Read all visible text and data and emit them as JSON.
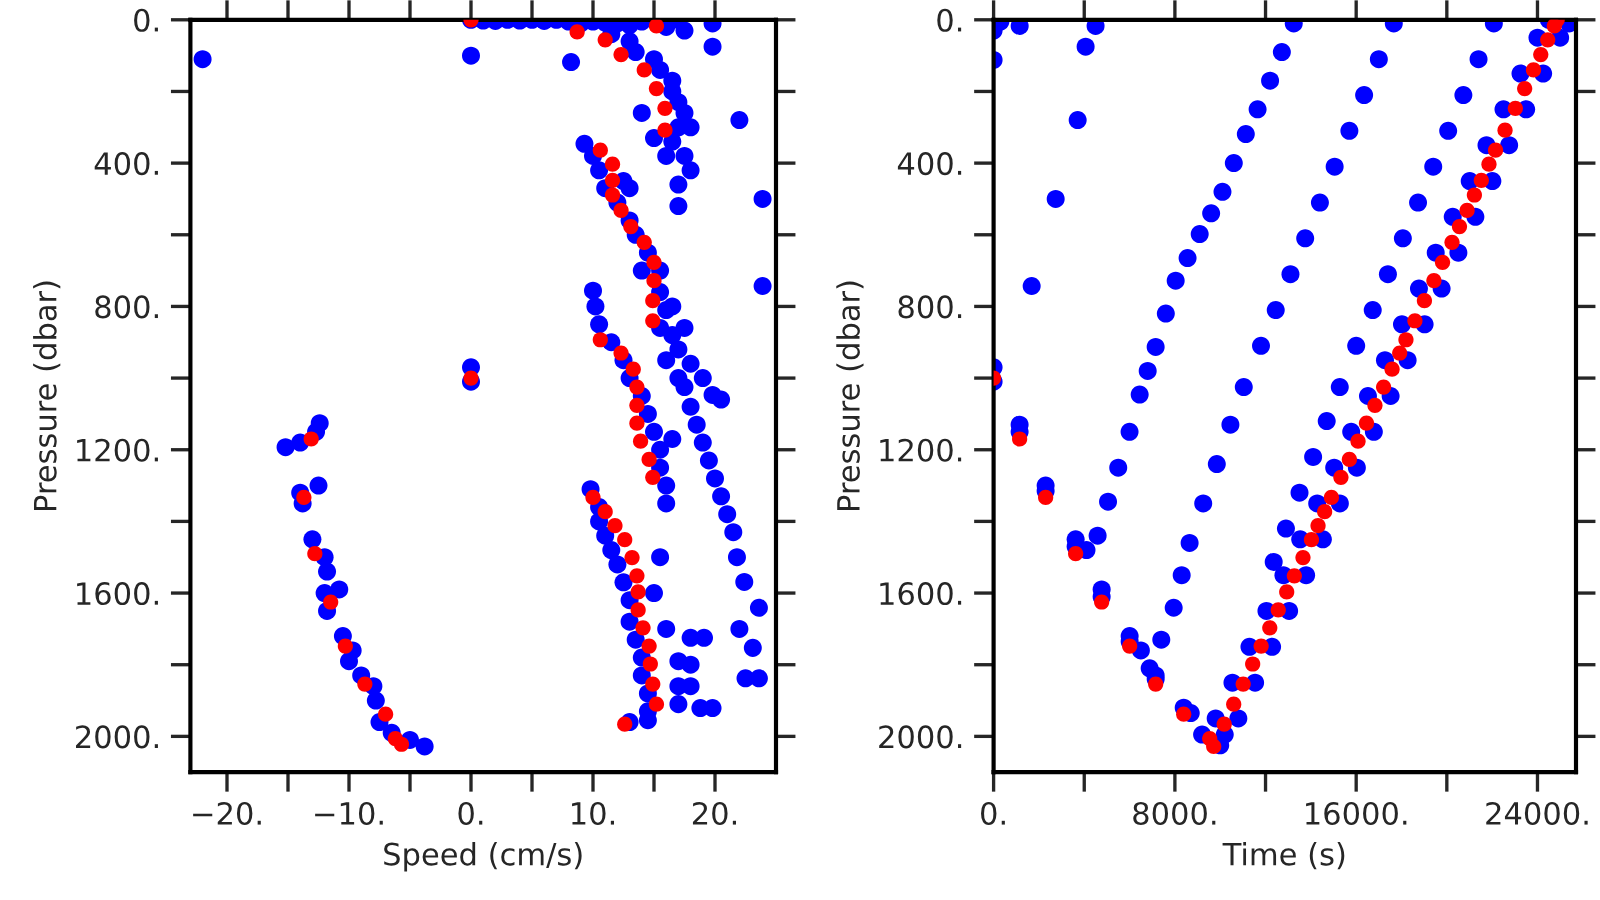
{
  "chart_data": [
    {
      "type": "scatter",
      "xlabel": "Speed (cm/s)",
      "ylabel": "Pressure (dbar)",
      "marker": "circle",
      "grid": false,
      "xlim": [
        -23,
        25
      ],
      "ylim": [
        2100,
        0
      ],
      "xticks": [
        {
          "value": -20,
          "label": "−20."
        },
        {
          "value": -15,
          "label": null
        },
        {
          "value": -10,
          "label": "−10."
        },
        {
          "value": -5,
          "label": null
        },
        {
          "value": 0,
          "label": "0."
        },
        {
          "value": 5,
          "label": null
        },
        {
          "value": 10,
          "label": "10."
        },
        {
          "value": 15,
          "label": null
        },
        {
          "value": 20,
          "label": "20."
        }
      ],
      "yticks": [
        {
          "value": 0,
          "label": "0."
        },
        {
          "value": 200,
          "label": null
        },
        {
          "value": 400,
          "label": "400."
        },
        {
          "value": 600,
          "label": null
        },
        {
          "value": 800,
          "label": "800."
        },
        {
          "value": 1000,
          "label": null
        },
        {
          "value": 1200,
          "label": "1200."
        },
        {
          "value": 1400,
          "label": null
        },
        {
          "value": 1600,
          "label": "1600."
        },
        {
          "value": 1800,
          "label": null
        },
        {
          "value": 2000,
          "label": "2000."
        }
      ],
      "series": [
        {
          "color": "#0000ff",
          "x": [
            0,
            1,
            2,
            3,
            4,
            5,
            6,
            7,
            8,
            9,
            10,
            11,
            12,
            13,
            14,
            16,
            17,
            17.5,
            0,
            -22,
            8.2,
            19.8,
            19.8,
            22,
            23.9,
            23.9,
            11.5,
            13,
            13.5,
            15,
            15.5,
            16.5,
            16.5,
            17,
            17.5,
            17,
            16.5,
            17.5,
            18,
            17,
            17,
            16,
            15,
            14,
            18,
            9.3,
            10,
            10.5,
            11,
            12,
            13,
            13.5,
            14.5,
            15.5,
            15.5,
            16,
            15.5,
            16.5,
            17,
            18,
            19,
            19.8,
            17,
            16,
            14,
            12.5,
            13,
            16.5,
            17.5,
            10,
            10.2,
            10.5,
            11.5,
            12.5,
            13,
            14,
            14.5,
            15,
            15.5,
            15.5,
            16,
            16,
            17.5,
            18,
            18.5,
            19,
            19.5,
            20,
            20.5,
            21,
            21.5,
            21.8,
            22.4,
            23.6,
            23.1,
            23.6,
            22.5,
            22,
            20.5,
            16.5,
            9.8,
            10.5,
            10.5,
            11,
            11.5,
            12,
            12.5,
            13,
            13,
            13.5,
            14,
            14,
            14.5,
            14.5,
            13,
            14.5,
            16,
            18,
            19.1,
            17,
            18,
            17,
            18,
            17,
            19.8,
            18.8,
            15.5,
            15,
            -15.2,
            -12.4,
            -14,
            -12.7,
            -14,
            -12.5,
            -13.8,
            -13,
            -12,
            -11.8,
            -12,
            -10.8,
            -11.8,
            -10.5,
            -9.7,
            -10,
            -9,
            -8,
            -7.8,
            -7.5,
            -6.5,
            -5,
            -3.8,
            0,
            0
          ],
          "values": [
            0,
            2,
            3,
            0,
            2,
            0,
            3,
            0,
            5,
            10,
            5,
            8,
            10,
            15,
            5,
            20,
            0,
            30,
            100,
            110,
            118,
            10,
            75,
            280,
            500,
            743,
            40,
            60,
            90,
            110,
            140,
            170,
            200,
            230,
            260,
            300,
            340,
            380,
            420,
            460,
            520,
            380,
            330,
            260,
            300,
            346,
            380,
            420,
            470,
            510,
            560,
            600,
            650,
            700,
            760,
            810,
            860,
            880,
            920,
            960,
            1000,
            1047,
            1000,
            950,
            700,
            450,
            470,
            800,
            860,
            756,
            800,
            850,
            900,
            950,
            1000,
            1050,
            1100,
            1150,
            1200,
            1250,
            1300,
            1350,
            1025,
            1080,
            1130,
            1180,
            1230,
            1280,
            1330,
            1380,
            1430,
            1500,
            1569,
            1641,
            1753,
            1838,
            1838,
            1700,
            1060,
            1170,
            1310,
            1360,
            1400,
            1440,
            1480,
            1520,
            1570,
            1620,
            1680,
            1730,
            1780,
            1830,
            1880,
            1930,
            1960,
            1955,
            1700,
            1725,
            1725,
            1790,
            1800,
            1860,
            1860,
            1910,
            1921,
            1921,
            1500,
            1600,
            1193,
            1126,
            1180,
            1150,
            1320,
            1300,
            1350,
            1450,
            1500,
            1540,
            1600,
            1590,
            1650,
            1720,
            1760,
            1790,
            1830,
            1860,
            1900,
            1960,
            1990,
            2010,
            2028,
            970,
            1010
          ]
        },
        {
          "color": "#ff0000",
          "x": [
            0,
            8.7,
            11,
            12.3,
            14.2,
            15.2,
            15.9,
            15.9,
            15.2,
            0,
            10.6,
            11.6,
            11.6,
            11.6,
            12.3,
            13.1,
            14.2,
            15,
            15,
            14.9,
            14.9,
            10.6,
            12.3,
            13.3,
            13.6,
            13.6,
            13.6,
            13.9,
            14.6,
            14.9,
            10,
            11,
            11.8,
            12.6,
            13.2,
            13.6,
            13.7,
            13.7,
            14.1,
            14.6,
            14.7,
            14.9,
            15.2,
            12.6,
            -13.1,
            -13.7,
            -12.8,
            -11.5,
            -10.3,
            -8.7,
            -7,
            -6.2,
            -5.7
          ],
          "values": [
            0,
            34,
            56,
            97,
            140,
            192,
            247,
            308,
            17,
            1000,
            364,
            403,
            448,
            489,
            532,
            577,
            621,
            677,
            728,
            784,
            840,
            893,
            930,
            975,
            1025,
            1076,
            1126,
            1176,
            1227,
            1277,
            1333,
            1373,
            1412,
            1451,
            1501,
            1552,
            1597,
            1647,
            1697,
            1748,
            1798,
            1854,
            1910,
            1966,
            1170,
            1333,
            1490,
            1625,
            1748,
            1854,
            1938,
            2006,
            2022
          ]
        }
      ]
    },
    {
      "type": "scatter",
      "xlabel": "Time (s)",
      "ylabel": "Pressure (dbar)",
      "marker": "circle",
      "grid": false,
      "xlim": [
        0,
        25700
      ],
      "ylim": [
        2100,
        0
      ],
      "xticks": [
        {
          "value": 0,
          "label": "0."
        },
        {
          "value": 4000,
          "label": null
        },
        {
          "value": 8000,
          "label": "8000."
        },
        {
          "value": 12000,
          "label": null
        },
        {
          "value": 16000,
          "label": "16000."
        },
        {
          "value": 20000,
          "label": null
        },
        {
          "value": 24000,
          "label": "24000."
        }
      ],
      "yticks": [
        {
          "value": 0,
          "label": "0."
        },
        {
          "value": 200,
          "label": null
        },
        {
          "value": 400,
          "label": "400."
        },
        {
          "value": 600,
          "label": null
        },
        {
          "value": 800,
          "label": "800."
        },
        {
          "value": 1000,
          "label": null
        },
        {
          "value": 1200,
          "label": "1200."
        },
        {
          "value": 1400,
          "label": null
        },
        {
          "value": 1600,
          "label": "1600."
        },
        {
          "value": 1800,
          "label": null
        },
        {
          "value": 2000,
          "label": "2000."
        }
      ],
      "series": [
        {
          "color": "#0000ff",
          "x": [
            0,
            1150,
            4060,
            4500,
            3710,
            2740,
            1680,
            0,
            0,
            300,
            0,
            1148,
            1148,
            2296,
            2296,
            3620,
            3620,
            4100,
            4768,
            4768,
            6004,
            6004,
            6500,
            7152,
            7152,
            8389,
            8700,
            9200,
            10000,
            10200,
            13245,
            12720,
            12200,
            11650,
            11130,
            10600,
            10100,
            9600,
            9095,
            8560,
            8035,
            7600,
            7151,
            6800,
            6446,
            6000,
            5500,
            5050,
            4590,
            17660,
            17000,
            16350,
            15700,
            15050,
            14400,
            13750,
            13100,
            12450,
            11800,
            11040,
            10450,
            9850,
            9250,
            8650,
            8300,
            7947,
            7400,
            6887,
            22075,
            21400,
            20730,
            20060,
            19400,
            18730,
            18060,
            17400,
            16730,
            16000,
            15276,
            14700,
            14100,
            13500,
            12900,
            12360,
            9800,
            10800,
            10540,
            11540,
            11290,
            12290,
            12040,
            13040,
            12790,
            13790,
            13530,
            14530,
            14280,
            15280,
            15030,
            16030,
            15780,
            16780,
            16520,
            17520,
            17270,
            18270,
            18020,
            19020,
            18770,
            19770,
            19510,
            20510,
            20260,
            21260,
            21010,
            22010,
            21750,
            22750,
            22500,
            23500,
            23250,
            24250,
            24000,
            25000,
            25400,
            24500
          ],
          "values": [
            112,
            17,
            75,
            17,
            280,
            500,
            743,
            970,
            1010,
            5,
            30,
            1130,
            1150,
            1300,
            1315,
            1450,
            1470,
            1480,
            1590,
            1610,
            1720,
            1735,
            1760,
            1830,
            1840,
            1920,
            1935,
            1995,
            2025,
            1995,
            10,
            90,
            170,
            250,
            319,
            400,
            480,
            540,
            598,
            665,
            728,
            820,
            913,
            980,
            1046,
            1150,
            1250,
            1345,
            1440,
            10,
            110,
            210,
            310,
            410,
            510,
            610,
            710,
            810,
            910,
            1025,
            1130,
            1240,
            1350,
            1460,
            1550,
            1641,
            1730,
            1810,
            10,
            110,
            210,
            310,
            410,
            510,
            610,
            710,
            810,
            910,
            1025,
            1120,
            1220,
            1320,
            1420,
            1513,
            1950,
            1950,
            1850,
            1850,
            1750,
            1750,
            1650,
            1650,
            1550,
            1550,
            1450,
            1450,
            1350,
            1350,
            1250,
            1250,
            1150,
            1150,
            1050,
            1050,
            950,
            950,
            850,
            850,
            750,
            750,
            650,
            650,
            550,
            550,
            450,
            450,
            350,
            350,
            250,
            250,
            150,
            150,
            50,
            50,
            10,
            0
          ]
        },
        {
          "color": "#ff0000",
          "x": [
            0,
            1148,
            2296,
            3620,
            4768,
            6004,
            7152,
            8389,
            9536,
            9713,
            10176,
            10595,
            11013,
            11432,
            11806,
            12187,
            12561,
            12934,
            13271,
            13652,
            14026,
            14317,
            14608,
            14907,
            15326,
            15700,
            16081,
            16455,
            16828,
            17210,
            17583,
            17920,
            18196,
            18592,
            19011,
            19430,
            19811,
            20229,
            20558,
            20894,
            21216,
            21522,
            21859,
            22150,
            22568,
            23024,
            23435,
            23824,
            24145,
            24452,
            24743,
            24870
          ],
          "values": [
            1000,
            1170,
            1333,
            1490,
            1625,
            1748,
            1854,
            1938,
            2006,
            2028,
            1966,
            1910,
            1854,
            1798,
            1748,
            1697,
            1647,
            1597,
            1552,
            1501,
            1451,
            1412,
            1373,
            1333,
            1277,
            1227,
            1176,
            1126,
            1076,
            1025,
            975,
            930,
            893,
            840,
            784,
            728,
            677,
            621,
            577,
            532,
            489,
            448,
            403,
            364,
            308,
            247,
            192,
            140,
            97,
            56,
            17,
            0
          ]
        }
      ]
    }
  ]
}
